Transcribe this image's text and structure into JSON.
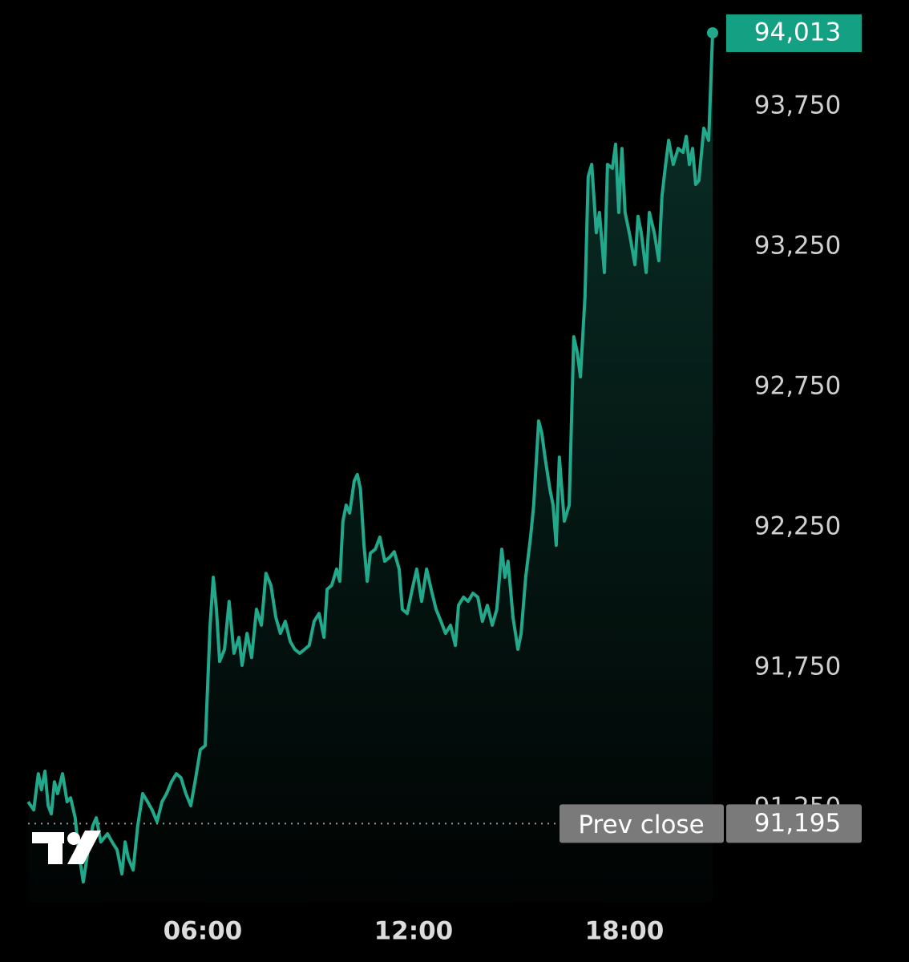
{
  "chart_data": {
    "type": "area-line",
    "x": [
      1.03,
      1.19,
      1.32,
      1.41,
      1.51,
      1.6,
      1.69,
      1.78,
      1.87,
      2.01,
      2.14,
      2.24,
      2.37,
      2.46,
      2.6,
      2.74,
      2.87,
      2.97,
      3.1,
      3.29,
      3.42,
      3.56,
      3.7,
      3.79,
      3.88,
      4.02,
      4.15,
      4.29,
      4.43,
      4.56,
      4.7,
      4.84,
      4.97,
      5.11,
      5.25,
      5.38,
      5.52,
      5.66,
      5.8,
      5.93,
      6.07,
      6.21,
      6.3,
      6.39,
      6.48,
      6.62,
      6.75,
      6.89,
      7.03,
      7.12,
      7.26,
      7.39,
      7.53,
      7.67,
      7.8,
      7.94,
      8.08,
      8.21,
      8.35,
      8.49,
      8.62,
      8.76,
      8.9,
      9.03,
      9.17,
      9.31,
      9.45,
      9.54,
      9.67,
      9.81,
      9.9,
      9.99,
      10.08,
      10.18,
      10.31,
      10.4,
      10.49,
      10.59,
      10.68,
      10.77,
      10.91,
      11.04,
      11.18,
      11.32,
      11.45,
      11.59,
      11.68,
      11.82,
      11.96,
      12.09,
      12.23,
      12.37,
      12.5,
      12.64,
      12.78,
      12.91,
      13.05,
      13.19,
      13.28,
      13.42,
      13.55,
      13.69,
      13.83,
      13.96,
      14.1,
      14.24,
      14.37,
      14.51,
      14.6,
      14.69,
      14.83,
      14.97,
      15.06,
      15.19,
      15.33,
      15.42,
      15.56,
      15.65,
      15.74,
      15.88,
      15.97,
      16.06,
      16.15,
      16.29,
      16.43,
      16.56,
      16.66,
      16.75,
      16.88,
      16.97,
      17.07,
      17.2,
      17.29,
      17.43,
      17.52,
      17.66,
      17.75,
      17.84,
      17.93,
      18.02,
      18.16,
      18.3,
      18.39,
      18.48,
      18.62,
      18.71,
      18.85,
      18.98,
      19.07,
      19.16,
      19.26,
      19.39,
      19.53,
      19.67,
      19.76,
      19.85,
      19.94,
      20.03,
      20.12,
      20.26,
      20.4,
      20.51
    ],
    "values": [
      91273,
      91244,
      91373,
      91316,
      91382,
      91259,
      91230,
      91344,
      91302,
      91373,
      91273,
      91287,
      91216,
      91102,
      90987,
      91102,
      91187,
      91216,
      91130,
      91159,
      91130,
      91102,
      91016,
      91130,
      91073,
      91030,
      91187,
      91302,
      91273,
      91244,
      91202,
      91273,
      91302,
      91344,
      91373,
      91359,
      91302,
      91259,
      91359,
      91459,
      91473,
      91902,
      92073,
      91959,
      91773,
      91816,
      91987,
      91802,
      91859,
      91759,
      91873,
      91787,
      91959,
      91902,
      92087,
      92044,
      91930,
      91873,
      91916,
      91844,
      91816,
      91802,
      91816,
      91830,
      91916,
      91944,
      91859,
      92030,
      92044,
      92102,
      92059,
      92273,
      92330,
      92302,
      92416,
      92439,
      92387,
      92187,
      92059,
      92159,
      92173,
      92216,
      92130,
      92144,
      92164,
      92102,
      91959,
      91944,
      92030,
      92102,
      91987,
      92102,
      92030,
      91959,
      91916,
      91873,
      91902,
      91830,
      91973,
      92002,
      91987,
      92016,
      92002,
      91916,
      91973,
      91902,
      91959,
      92173,
      92073,
      92130,
      91930,
      91816,
      91873,
      92073,
      92216,
      92330,
      92630,
      92587,
      92501,
      92387,
      92330,
      92187,
      92501,
      92273,
      92330,
      92930,
      92873,
      92787,
      93073,
      93501,
      93544,
      93301,
      93373,
      93159,
      93544,
      93530,
      93616,
      93373,
      93601,
      93373,
      93287,
      93187,
      93359,
      93301,
      93159,
      93373,
      93301,
      93201,
      93430,
      93530,
      93630,
      93544,
      93601,
      93587,
      93644,
      93544,
      93601,
      93473,
      93487,
      93673,
      93630,
      94013
    ],
    "color": "#22a98b",
    "last_price_label": "94,013",
    "prev_close": {
      "value": 91195,
      "label": "91,195"
    },
    "prev_close_label": "Prev close",
    "xlim": [
      0.23,
      26.1
    ],
    "ylim": [
      90702,
      94130
    ],
    "xticks": [
      {
        "value": 6,
        "label": "06:00"
      },
      {
        "value": 12,
        "label": "12:00"
      },
      {
        "value": 18,
        "label": "18:00"
      }
    ],
    "yticks": [
      {
        "value": 91250,
        "label": "91,250"
      },
      {
        "value": 91750,
        "label": "91,750"
      },
      {
        "value": 92250,
        "label": "92,250"
      },
      {
        "value": 92750,
        "label": "92,750"
      },
      {
        "value": 93250,
        "label": "93,250"
      },
      {
        "value": 93750,
        "label": "93,750"
      }
    ]
  }
}
